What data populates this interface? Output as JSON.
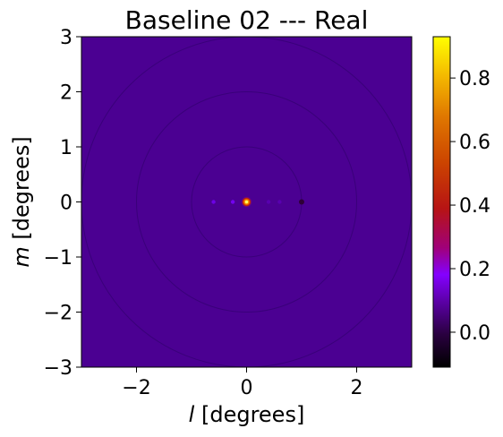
{
  "chart_data": {
    "type": "heatmap",
    "title": "Baseline 02 --- Real",
    "xlabel": {
      "italic": "l",
      "rest": " [degrees]"
    },
    "ylabel": {
      "italic": "m",
      "rest": " [degrees]"
    },
    "xlim": [
      -3,
      3
    ],
    "ylim": [
      -3,
      3
    ],
    "xticks": [
      {
        "v": -2,
        "label": "−2"
      },
      {
        "v": 0,
        "label": "0"
      },
      {
        "v": 2,
        "label": "2"
      }
    ],
    "yticks": [
      {
        "v": 3,
        "label": "3"
      },
      {
        "v": 2,
        "label": "2"
      },
      {
        "v": 1,
        "label": "1"
      },
      {
        "v": 0,
        "label": "0"
      },
      {
        "v": -1,
        "label": "−1"
      },
      {
        "v": -2,
        "label": "−2"
      },
      {
        "v": -3,
        "label": "−3"
      }
    ],
    "background_color": "#4b0092",
    "ring_color": "#3a007a",
    "rings_radius_deg": [
      1,
      2,
      3
    ],
    "features": [
      {
        "l": 0.0,
        "m": 0.0,
        "value": 0.93,
        "note": "peak"
      },
      {
        "l": 1.0,
        "m": 0.0,
        "value": -0.08
      },
      {
        "l": 0.4,
        "m": 0.0,
        "value": 0.02
      },
      {
        "l": 0.6,
        "m": 0.0,
        "value": 0.02
      },
      {
        "l": -0.6,
        "m": 0.0,
        "value": 0.09
      },
      {
        "l": -0.25,
        "m": 0.0,
        "value": 0.12
      }
    ],
    "colorbar": {
      "colormap": "gnuplot",
      "vmin": -0.11,
      "vmax": 0.93,
      "ticks": [
        {
          "v": 0.0,
          "label": "0.0"
        },
        {
          "v": 0.2,
          "label": "0.2"
        },
        {
          "v": 0.4,
          "label": "0.4"
        },
        {
          "v": 0.6,
          "label": "0.6"
        },
        {
          "v": 0.8,
          "label": "0.8"
        }
      ]
    }
  }
}
